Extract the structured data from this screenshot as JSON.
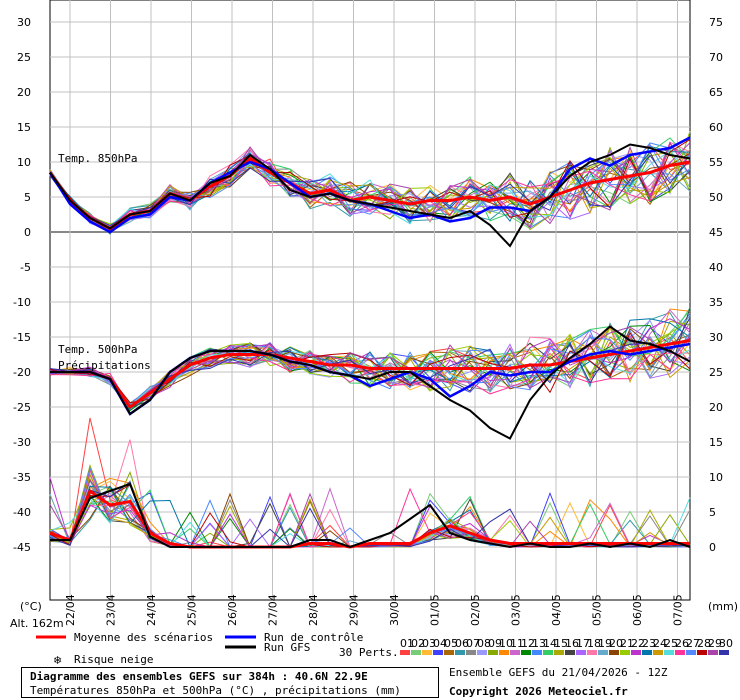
{
  "chart_data": {
    "type": "line",
    "title": "Diagramme des ensembles GEFS sur 384h : 40.6N 22.9E",
    "subtitle": "Températures 850hPa et 500hPa (°C) , précipitations (mm)",
    "x_ticks": [
      "22/04",
      "23/04",
      "24/04",
      "25/04",
      "26/04",
      "27/04",
      "28/04",
      "29/04",
      "30/04",
      "01/05",
      "02/05",
      "03/05",
      "04/05",
      "05/05",
      "06/05",
      "07/05"
    ],
    "y_left_ticks": [
      30,
      25,
      20,
      15,
      10,
      5,
      0,
      -5,
      -10,
      -15,
      -20,
      -25,
      -30,
      -35,
      -40,
      -45
    ],
    "y_right_ticks": [
      75,
      70,
      65,
      60,
      55,
      50,
      45,
      40,
      35,
      30,
      25,
      20,
      15,
      10,
      5,
      0
    ],
    "y_left_label": "(°C)",
    "y_right_label": "(mm)",
    "ylim_left": [
      -45,
      30
    ],
    "ylim_right": [
      0,
      75
    ],
    "grid": true,
    "annotations": [
      "Temp. 850hPa",
      "Temp. 500hPa",
      "Précipitations"
    ],
    "altitude": "Alt. 162m",
    "legend": {
      "mean": "Moyenne des scénarios",
      "control": "Run de contrôle",
      "gfs": "Run GFS",
      "snow": "Risque neige",
      "perts_label": "30 Perts.",
      "perts": [
        "01",
        "02",
        "03",
        "04",
        "05",
        "06",
        "07",
        "08",
        "09",
        "10",
        "11",
        "12",
        "13",
        "14",
        "15",
        "16",
        "17",
        "18",
        "19",
        "20",
        "21",
        "22",
        "23",
        "24",
        "25",
        "26",
        "27",
        "28",
        "29",
        "30"
      ]
    },
    "series": [
      {
        "name": "Moyenne des scénarios",
        "panel": "t850",
        "values": [
          8.5,
          4.5,
          2,
          0.5,
          2.5,
          3,
          5.5,
          4.5,
          6.5,
          8,
          10.5,
          8.5,
          7,
          5.5,
          6,
          4.5,
          5,
          4.5,
          4,
          4.5,
          4.5,
          5,
          4.5,
          5,
          4,
          5,
          6,
          7,
          7.5,
          8,
          8.5,
          9.5,
          10
        ]
      },
      {
        "name": "Run de contrôle",
        "panel": "t850",
        "values": [
          8.5,
          4,
          1.5,
          0,
          2,
          2.5,
          5,
          4.5,
          7,
          8.5,
          10,
          9,
          7,
          5,
          5.5,
          4.5,
          4,
          3,
          2,
          2.5,
          1.5,
          2,
          3.5,
          3.5,
          3,
          5,
          9,
          10.5,
          9.5,
          11,
          11.5,
          12,
          13.5
        ]
      },
      {
        "name": "Run GFS",
        "panel": "t850",
        "values": [
          8.5,
          4.5,
          2,
          0.5,
          2.5,
          3,
          5.5,
          4.5,
          7,
          8,
          11,
          9,
          6,
          5,
          5.5,
          4.5,
          4,
          3.5,
          3,
          2.5,
          2,
          3,
          1,
          -2,
          3,
          5,
          8,
          10,
          11,
          12.5,
          12,
          11,
          10.5
        ]
      },
      {
        "name": "Moyenne des scénarios",
        "panel": "t500",
        "values": [
          -20,
          -20,
          -20,
          -21,
          -25,
          -23,
          -21,
          -19,
          -18,
          -17.5,
          -17.5,
          -17.5,
          -18,
          -18.5,
          -19,
          -19,
          -19.5,
          -19.5,
          -19.5,
          -19.5,
          -19.5,
          -19.5,
          -19.5,
          -19.5,
          -19,
          -19,
          -18.5,
          -18,
          -17.5,
          -17,
          -16.5,
          -16,
          -15.5
        ]
      },
      {
        "name": "Run de contrôle",
        "panel": "t500",
        "values": [
          -20,
          -20,
          -20,
          -21,
          -26,
          -24,
          -20,
          -18,
          -17,
          -17,
          -17,
          -17.5,
          -18.5,
          -19,
          -20,
          -20.5,
          -22,
          -21,
          -20,
          -21,
          -23.5,
          -22,
          -20,
          -20.5,
          -20,
          -20,
          -18.5,
          -17.5,
          -17,
          -17.5,
          -17,
          -16.5,
          -16
        ]
      },
      {
        "name": "Run GFS",
        "panel": "t500",
        "values": [
          -20,
          -20,
          -20,
          -21,
          -26,
          -24,
          -20,
          -18,
          -17,
          -17,
          -17,
          -17.5,
          -18.5,
          -19,
          -20,
          -20.5,
          -21,
          -20,
          -20,
          -22,
          -24,
          -25.5,
          -28,
          -29.5,
          -24,
          -20.5,
          -18,
          -16,
          -13.5,
          -15.5,
          -16,
          -17,
          -18.5
        ]
      },
      {
        "name": "Moyenne des scénarios",
        "panel": "precip",
        "values": [
          2,
          1,
          8,
          6,
          6.5,
          2,
          0.5,
          0,
          0,
          0,
          0,
          0,
          0,
          0.5,
          0.5,
          0,
          0.5,
          0.5,
          0.5,
          2,
          3,
          2,
          1,
          0.5,
          0.5,
          0.5,
          0.5,
          0.5,
          0.5,
          0.5,
          0.5,
          0.5,
          0.5
        ]
      },
      {
        "name": "Run GFS",
        "panel": "precip",
        "values": [
          1,
          1,
          7,
          8,
          9,
          1.5,
          0,
          0,
          0,
          0,
          0,
          0,
          0,
          1,
          1,
          0,
          1,
          2,
          4,
          6,
          2,
          1,
          0.5,
          0,
          0.5,
          0,
          0,
          0.5,
          0,
          0.5,
          0,
          1,
          0
        ]
      }
    ]
  },
  "footer": {
    "title": "Diagramme des ensembles GEFS sur 384h : 40.6N 22.9E",
    "subtitle": "Températures 850hPa et 500hPa (°C) , précipitations (mm)",
    "run_info": "Ensemble GEFS du 21/04/2026 - 12Z",
    "copyright": "Copyright 2026 Meteociel.fr"
  },
  "colors": {
    "mean": "#ff0000",
    "control": "#0000ff",
    "gfs": "#000000",
    "grid": "#c0c0c0",
    "snow": "#3399ff",
    "perts": [
      "#ff4040",
      "#77cc77",
      "#ffbb33",
      "#4040ff",
      "#aa6600",
      "#3399aa",
      "#888888",
      "#9999ff",
      "#88aa00",
      "#ff8800",
      "#cc66cc",
      "#008800",
      "#4488ff",
      "#33cc66",
      "#aaaa00",
      "#444444",
      "#aa66ff",
      "#ff77aa",
      "#66aacc",
      "#884400",
      "#99cc00",
      "#bb33cc",
      "#0077aa",
      "#cc9900",
      "#55dddd",
      "#ff3399",
      "#5588ff",
      "#bb0000",
      "#aa44aa",
      "#3333aa"
    ]
  }
}
